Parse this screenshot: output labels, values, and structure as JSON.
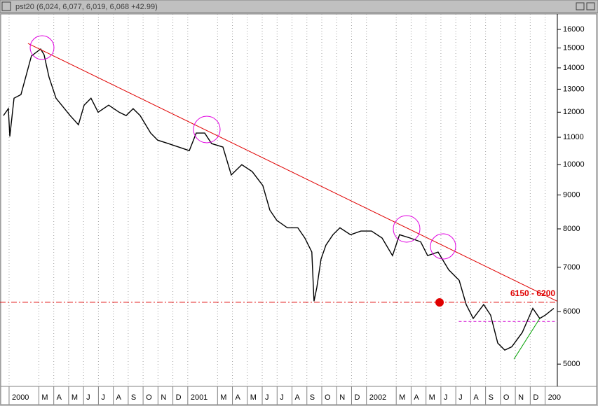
{
  "chart_data": {
    "type": "line",
    "title": "pst20 (6,024, 6,077, 6,019, 6,068 +42.99)",
    "log_y": true,
    "grid": true,
    "xlim": [
      -0.61,
      36.82
    ],
    "ylim": [
      4650,
      16800
    ],
    "yticks": [
      5000,
      6000,
      7000,
      8000,
      9000,
      10000,
      11000,
      12000,
      13000,
      14000,
      15000,
      16000
    ],
    "xticks": [
      {
        "value": 0,
        "label": "2000"
      },
      {
        "value": 2,
        "label": "M"
      },
      {
        "value": 3,
        "label": "A"
      },
      {
        "value": 4,
        "label": "M"
      },
      {
        "value": 5,
        "label": "J"
      },
      {
        "value": 6,
        "label": "J"
      },
      {
        "value": 7,
        "label": "A"
      },
      {
        "value": 8,
        "label": "S"
      },
      {
        "value": 9,
        "label": "O"
      },
      {
        "value": 10,
        "label": "N"
      },
      {
        "value": 11,
        "label": "D"
      },
      {
        "value": 12,
        "label": "2001"
      },
      {
        "value": 14,
        "label": "M"
      },
      {
        "value": 15,
        "label": "A"
      },
      {
        "value": 16,
        "label": "M"
      },
      {
        "value": 17,
        "label": "J"
      },
      {
        "value": 18,
        "label": "J"
      },
      {
        "value": 19,
        "label": "A"
      },
      {
        "value": 20,
        "label": "S"
      },
      {
        "value": 21,
        "label": "O"
      },
      {
        "value": 22,
        "label": "N"
      },
      {
        "value": 23,
        "label": "D"
      },
      {
        "value": 24,
        "label": "2002"
      },
      {
        "value": 26,
        "label": "M"
      },
      {
        "value": 27,
        "label": "A"
      },
      {
        "value": 28,
        "label": "M"
      },
      {
        "value": 29,
        "label": "J"
      },
      {
        "value": 30,
        "label": "J"
      },
      {
        "value": 31,
        "label": "A"
      },
      {
        "value": 32,
        "label": "S"
      },
      {
        "value": 33,
        "label": "O"
      },
      {
        "value": 34,
        "label": "N"
      },
      {
        "value": 35,
        "label": "D"
      },
      {
        "value": 36,
        "label": "200"
      }
    ],
    "series": [
      {
        "color": "#000000",
        "x": [
          -0.38,
          -0.05,
          0.05,
          0.33,
          0.8,
          1.18,
          1.5,
          2.12,
          2.35,
          2.68,
          3.15,
          3.72,
          4.1,
          4.66,
          5.04,
          5.5,
          5.98,
          6.69,
          7.39,
          7.86,
          8.33,
          8.8,
          9.51,
          9.98,
          10.69,
          11.39,
          12.1,
          12.57,
          13.14,
          13.6,
          14.36,
          14.92,
          15.63,
          16.33,
          17.04,
          17.51,
          17.98,
          18.69,
          19.39,
          19.86,
          20.33,
          20.48,
          20.67,
          20.95,
          21.28,
          21.75,
          22.22,
          22.93,
          23.63,
          24.34,
          25.05,
          25.75,
          26.22,
          26.93,
          27.64,
          28.11,
          28.81,
          29.52,
          30.23,
          30.7,
          31.17,
          31.87,
          32.34,
          32.82,
          33.29,
          33.76,
          34.46,
          35.17,
          35.64,
          36.02,
          36.58
        ],
        "values": [
          11860,
          12150,
          11030,
          12600,
          12760,
          13720,
          14590,
          14950,
          14650,
          13560,
          12600,
          12150,
          11860,
          11490,
          12300,
          12600,
          12000,
          12300,
          12000,
          11860,
          12150,
          11860,
          11160,
          10890,
          10760,
          10630,
          10500,
          11160,
          11160,
          10760,
          10630,
          9650,
          10000,
          9760,
          9300,
          8540,
          8240,
          8030,
          8030,
          7750,
          7380,
          6220,
          6530,
          7200,
          7560,
          7840,
          8030,
          7840,
          7940,
          7940,
          7750,
          7290,
          7840,
          7750,
          7650,
          7290,
          7380,
          6940,
          6690,
          6150,
          5860,
          6150,
          5930,
          5380,
          5250,
          5310,
          5580,
          6070,
          5860,
          5930,
          6070
        ]
      }
    ],
    "lines": [
      {
        "color": "#e00000",
        "x": [
          1.27,
          36.82
        ],
        "values": [
          15240,
          6220
        ]
      },
      {
        "color": "#e00000",
        "x": [
          -0.61,
          36.82
        ],
        "values": [
          6200,
          6200
        ]
      },
      {
        "color": "#d000d0",
        "x": [
          30.2,
          36.82
        ],
        "values": [
          5800,
          5800
        ]
      },
      {
        "color": "#00a000",
        "x": [
          33.9,
          35.64
        ],
        "values": [
          5085,
          5860
        ]
      }
    ],
    "annotation": "6150 - 6200"
  }
}
